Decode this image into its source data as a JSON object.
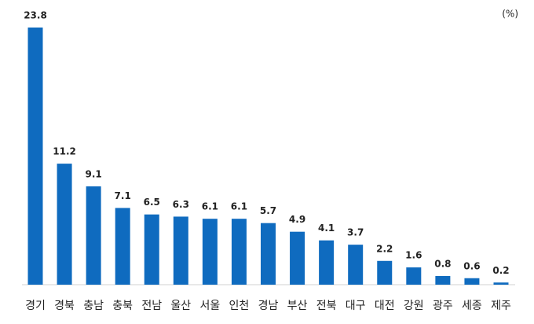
{
  "chart_data": {
    "type": "bar",
    "unit": "(%)",
    "categories": [
      "경기",
      "경북",
      "충남",
      "충북",
      "전남",
      "울산",
      "서울",
      "인천",
      "경남",
      "부산",
      "전북",
      "대구",
      "대전",
      "강원",
      "광주",
      "세종",
      "제주"
    ],
    "values": [
      23.8,
      11.2,
      9.1,
      7.1,
      6.5,
      6.3,
      6.1,
      6.1,
      5.7,
      4.9,
      4.1,
      3.7,
      2.2,
      1.6,
      0.8,
      0.6,
      0.2
    ],
    "color": "#0f6bbf"
  }
}
